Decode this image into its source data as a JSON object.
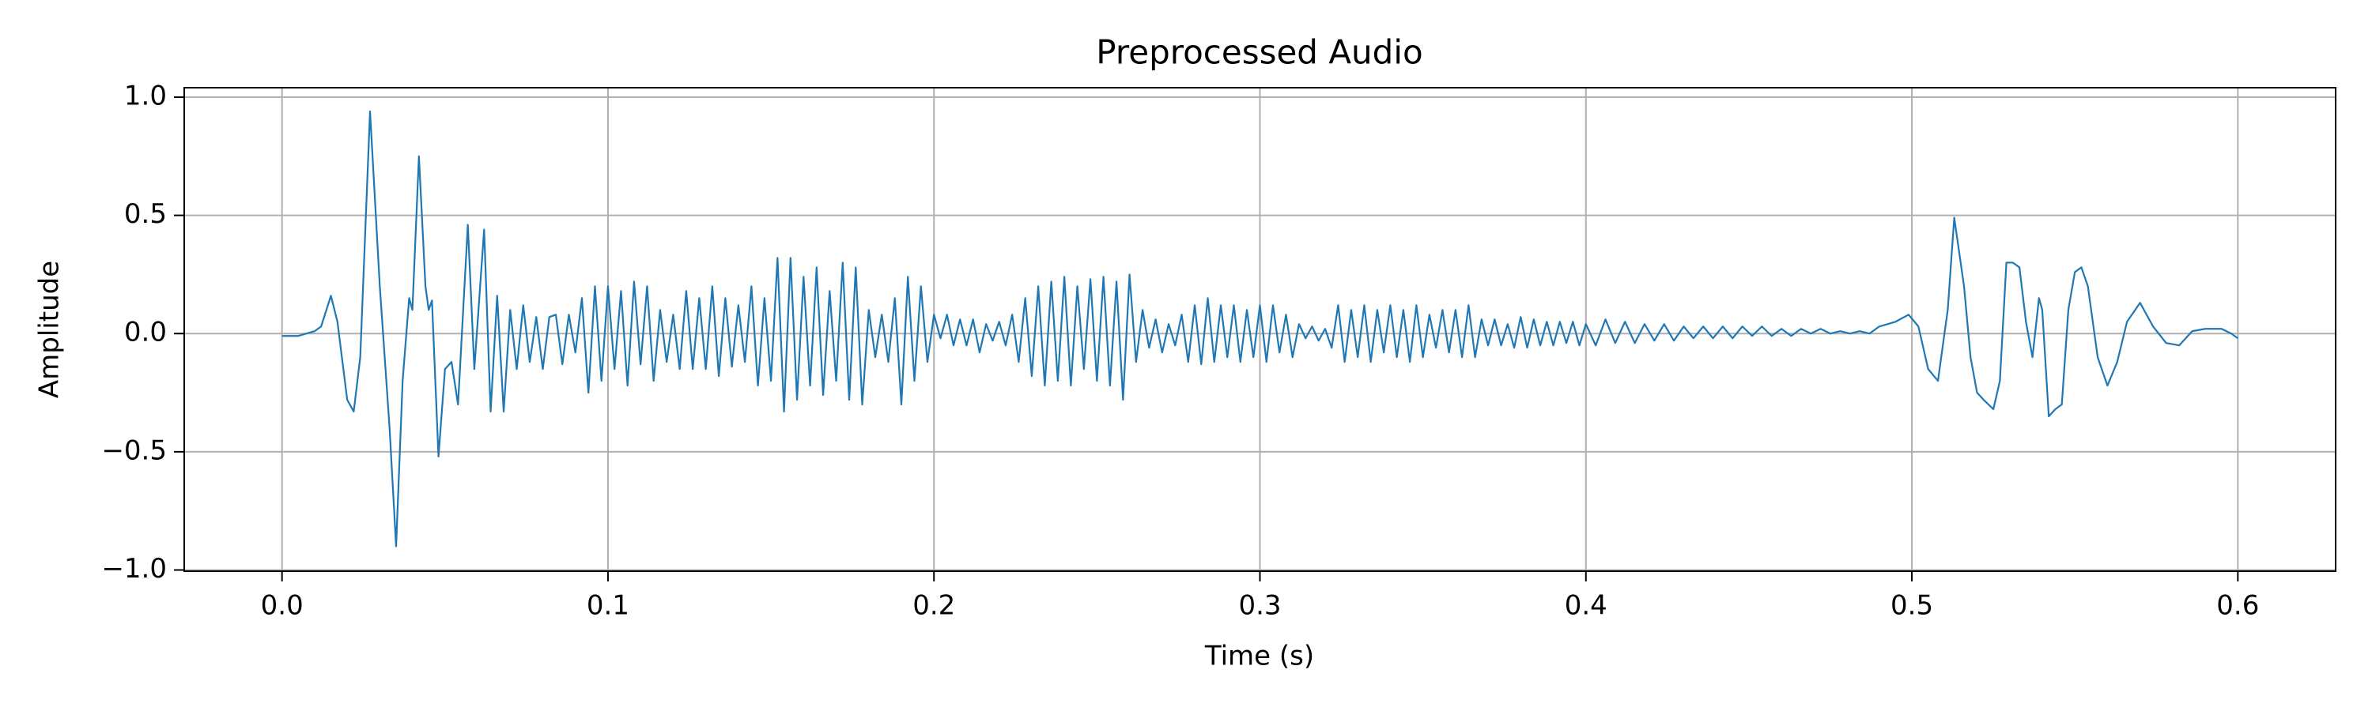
{
  "chart_data": {
    "type": "line",
    "title": "Preprocessed Audio",
    "x_label": "Time (s)",
    "y_label": "Amplitude",
    "color": "#1f77b4",
    "grid": true,
    "xlim": [
      -0.03,
      0.63
    ],
    "ylim": [
      -1.005,
      1.04
    ],
    "xticks": [
      {
        "value": 0,
        "label": "0.0"
      },
      0.1,
      0.2,
      0.3,
      0.4,
      0.5,
      0.6
    ],
    "yticks": [
      {
        "value": -1,
        "label": "−1.0"
      },
      {
        "value": -0.5,
        "label": "−0.5"
      },
      {
        "value": 0,
        "label": "0.0"
      },
      0.5,
      {
        "value": 1,
        "label": "1.0"
      }
    ],
    "x": [
      0.0,
      0.005,
      0.01,
      0.012,
      0.015,
      0.017,
      0.02,
      0.022,
      0.024,
      0.027,
      0.03,
      0.033,
      0.035,
      0.037,
      0.039,
      0.04,
      0.042,
      0.044,
      0.045,
      0.046,
      0.048,
      0.05,
      0.052,
      0.054,
      0.057,
      0.059,
      0.062,
      0.064,
      0.066,
      0.068,
      0.07,
      0.072,
      0.074,
      0.076,
      0.078,
      0.08,
      0.082,
      0.084,
      0.086,
      0.088,
      0.09,
      0.092,
      0.094,
      0.096,
      0.098,
      0.1,
      0.102,
      0.104,
      0.106,
      0.108,
      0.11,
      0.112,
      0.114,
      0.116,
      0.118,
      0.12,
      0.122,
      0.124,
      0.126,
      0.128,
      0.13,
      0.132,
      0.134,
      0.136,
      0.138,
      0.14,
      0.142,
      0.144,
      0.146,
      0.148,
      0.15,
      0.152,
      0.154,
      0.156,
      0.158,
      0.16,
      0.162,
      0.164,
      0.166,
      0.168,
      0.17,
      0.172,
      0.174,
      0.176,
      0.178,
      0.18,
      0.182,
      0.184,
      0.186,
      0.188,
      0.19,
      0.192,
      0.194,
      0.196,
      0.198,
      0.2,
      0.202,
      0.204,
      0.206,
      0.208,
      0.21,
      0.212,
      0.214,
      0.216,
      0.218,
      0.22,
      0.222,
      0.224,
      0.226,
      0.228,
      0.23,
      0.232,
      0.234,
      0.236,
      0.238,
      0.24,
      0.242,
      0.244,
      0.246,
      0.248,
      0.25,
      0.252,
      0.254,
      0.256,
      0.258,
      0.26,
      0.262,
      0.264,
      0.266,
      0.268,
      0.27,
      0.272,
      0.274,
      0.276,
      0.278,
      0.28,
      0.282,
      0.284,
      0.286,
      0.288,
      0.29,
      0.292,
      0.294,
      0.296,
      0.298,
      0.3,
      0.302,
      0.304,
      0.306,
      0.308,
      0.31,
      0.312,
      0.314,
      0.316,
      0.318,
      0.32,
      0.322,
      0.324,
      0.326,
      0.328,
      0.33,
      0.332,
      0.334,
      0.336,
      0.338,
      0.34,
      0.342,
      0.344,
      0.346,
      0.348,
      0.35,
      0.352,
      0.354,
      0.356,
      0.358,
      0.36,
      0.362,
      0.364,
      0.366,
      0.368,
      0.37,
      0.372,
      0.374,
      0.376,
      0.378,
      0.38,
      0.382,
      0.384,
      0.386,
      0.388,
      0.39,
      0.392,
      0.394,
      0.396,
      0.398,
      0.4,
      0.403,
      0.406,
      0.409,
      0.412,
      0.415,
      0.418,
      0.421,
      0.424,
      0.427,
      0.43,
      0.433,
      0.436,
      0.439,
      0.442,
      0.445,
      0.448,
      0.451,
      0.454,
      0.457,
      0.46,
      0.463,
      0.466,
      0.469,
      0.472,
      0.475,
      0.478,
      0.481,
      0.484,
      0.487,
      0.49,
      0.495,
      0.499,
      0.502,
      0.505,
      0.508,
      0.511,
      0.513,
      0.516,
      0.518,
      0.52,
      0.522,
      0.525,
      0.527,
      0.529,
      0.531,
      0.533,
      0.535,
      0.537,
      0.539,
      0.54,
      0.542,
      0.544,
      0.546,
      0.548,
      0.55,
      0.552,
      0.554,
      0.557,
      0.56,
      0.563,
      0.566,
      0.57,
      0.574,
      0.578,
      0.582,
      0.586,
      0.59,
      0.595,
      0.598,
      0.6
    ],
    "values": [
      -0.01,
      -0.01,
      0.01,
      0.03,
      0.16,
      0.05,
      -0.28,
      -0.33,
      -0.1,
      0.94,
      0.2,
      -0.4,
      -0.9,
      -0.2,
      0.15,
      0.1,
      0.75,
      0.2,
      0.1,
      0.14,
      -0.52,
      -0.15,
      -0.12,
      -0.3,
      0.46,
      -0.15,
      0.44,
      -0.33,
      0.16,
      -0.33,
      0.1,
      -0.15,
      0.12,
      -0.12,
      0.07,
      -0.15,
      0.07,
      0.08,
      -0.13,
      0.08,
      -0.08,
      0.15,
      -0.25,
      0.2,
      -0.2,
      0.2,
      -0.15,
      0.18,
      -0.22,
      0.22,
      -0.13,
      0.2,
      -0.2,
      0.1,
      -0.12,
      0.08,
      -0.15,
      0.18,
      -0.15,
      0.15,
      -0.15,
      0.2,
      -0.18,
      0.15,
      -0.14,
      0.12,
      -0.12,
      0.2,
      -0.22,
      0.15,
      -0.2,
      0.32,
      -0.33,
      0.32,
      -0.28,
      0.24,
      -0.22,
      0.28,
      -0.26,
      0.18,
      -0.2,
      0.3,
      -0.28,
      0.28,
      -0.3,
      0.1,
      -0.1,
      0.08,
      -0.12,
      0.15,
      -0.3,
      0.24,
      -0.2,
      0.2,
      -0.12,
      0.08,
      -0.02,
      0.08,
      -0.05,
      0.06,
      -0.05,
      0.06,
      -0.08,
      0.04,
      -0.03,
      0.05,
      -0.05,
      0.08,
      -0.12,
      0.15,
      -0.18,
      0.2,
      -0.22,
      0.22,
      -0.2,
      0.24,
      -0.22,
      0.2,
      -0.15,
      0.23,
      -0.2,
      0.24,
      -0.22,
      0.22,
      -0.28,
      0.25,
      -0.12,
      0.1,
      -0.06,
      0.06,
      -0.08,
      0.04,
      -0.05,
      0.08,
      -0.12,
      0.12,
      -0.13,
      0.15,
      -0.12,
      0.12,
      -0.1,
      0.12,
      -0.12,
      0.1,
      -0.1,
      0.12,
      -0.12,
      0.12,
      -0.08,
      0.08,
      -0.1,
      0.04,
      -0.02,
      0.03,
      -0.03,
      0.02,
      -0.06,
      0.12,
      -0.12,
      0.1,
      -0.1,
      0.12,
      -0.12,
      0.1,
      -0.08,
      0.12,
      -0.1,
      0.1,
      -0.12,
      0.12,
      -0.1,
      0.08,
      -0.06,
      0.1,
      -0.08,
      0.1,
      -0.1,
      0.12,
      -0.1,
      0.06,
      -0.05,
      0.06,
      -0.05,
      0.04,
      -0.06,
      0.07,
      -0.06,
      0.06,
      -0.05,
      0.05,
      -0.05,
      0.05,
      -0.04,
      0.05,
      -0.05,
      0.04,
      -0.05,
      0.06,
      -0.04,
      0.05,
      -0.04,
      0.04,
      -0.03,
      0.04,
      -0.03,
      0.03,
      -0.02,
      0.03,
      -0.02,
      0.03,
      -0.02,
      0.03,
      -0.01,
      0.03,
      -0.01,
      0.02,
      -0.01,
      0.02,
      0,
      0.02,
      0,
      0.01,
      0,
      0.01,
      0,
      0.03,
      0.05,
      0.08,
      0.03,
      -0.15,
      -0.2,
      0.1,
      0.49,
      0.2,
      -0.1,
      -0.25,
      -0.28,
      -0.32,
      -0.2,
      0.3,
      0.3,
      0.28,
      0.05,
      -0.1,
      0.15,
      0.1,
      -0.35,
      -0.32,
      -0.3,
      0.1,
      0.26,
      0.28,
      0.2,
      -0.1,
      -0.22,
      -0.12,
      0.05,
      0.13,
      0.03,
      -0.04,
      -0.05,
      0.01,
      0.02,
      0.02,
      0,
      -0.02
    ]
  }
}
